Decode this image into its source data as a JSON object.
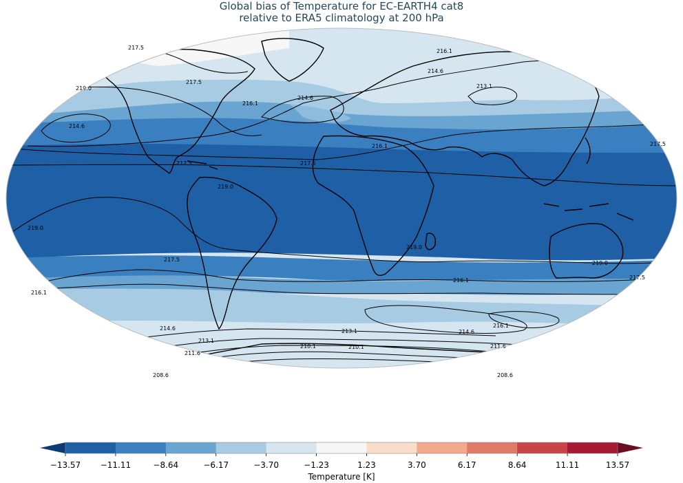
{
  "title_line1": "Global bias of Temperature for EC-EARTH4 cat8",
  "title_line2": "relative to ERA5 climatology at 200 hPa",
  "colorbar": {
    "label": "Temperature [K]",
    "ticks": [
      "−13.57",
      "−11.11",
      "−8.64",
      "−6.17",
      "−3.70",
      "−1.23",
      "1.23",
      "3.70",
      "6.17",
      "8.64",
      "11.11",
      "13.57"
    ],
    "colors": [
      "#1f5fa6",
      "#3a7fbf",
      "#6aa5d2",
      "#a6cbe3",
      "#d6e6f1",
      "#f7f7f7",
      "#fbdccb",
      "#f4a98a",
      "#e07b67",
      "#c94447",
      "#a51a30"
    ],
    "extend_min_color": "#0b3a74",
    "extend_max_color": "#6b0c22"
  },
  "contour_labels": [
    {
      "text": "217.5"
    },
    {
      "text": "219.0"
    },
    {
      "text": "217.5"
    },
    {
      "text": "216.1"
    },
    {
      "text": "214.6"
    },
    {
      "text": "216.1"
    },
    {
      "text": "214.6"
    },
    {
      "text": "214.6"
    },
    {
      "text": "213.1"
    },
    {
      "text": "216.1"
    },
    {
      "text": "217.5"
    },
    {
      "text": "217.5"
    },
    {
      "text": "217.5"
    },
    {
      "text": "219.0"
    },
    {
      "text": "219.0"
    },
    {
      "text": "219.0"
    },
    {
      "text": "217.5"
    },
    {
      "text": "219.0"
    },
    {
      "text": "216.1"
    },
    {
      "text": "216.1"
    },
    {
      "text": "217.5"
    },
    {
      "text": "216.1"
    },
    {
      "text": "214.6"
    },
    {
      "text": "213.1"
    },
    {
      "text": "214.6"
    },
    {
      "text": "213.1"
    },
    {
      "text": "211.6"
    },
    {
      "text": "210.1"
    },
    {
      "text": "210.1"
    },
    {
      "text": "211.6"
    },
    {
      "text": "208.6"
    },
    {
      "text": "208.6"
    }
  ]
}
